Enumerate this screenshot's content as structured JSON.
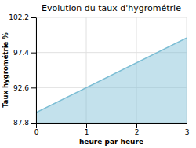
{
  "chart_data": {
    "type": "area",
    "title": "Evolution du taux d'hygrométrie",
    "xlabel": "heure par heure",
    "ylabel": "Taux hygrométrie %",
    "x": [
      0,
      3
    ],
    "values": [
      89.2,
      99.4
    ],
    "baseline": 87.8,
    "color": "#7bbdd4",
    "xlim": [
      0,
      3
    ],
    "ylim": [
      87.8,
      102.2
    ],
    "xticks": [
      0,
      1,
      2,
      3
    ],
    "yticks": [
      87.8,
      92.6,
      97.4,
      102.2
    ],
    "grid": true
  }
}
